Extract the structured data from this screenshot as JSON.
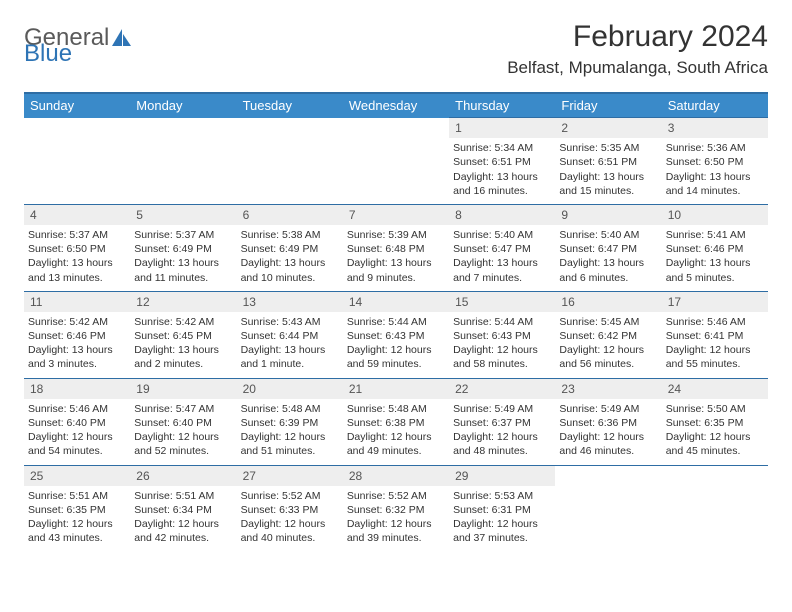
{
  "logo": {
    "general": "General",
    "blue": "Blue"
  },
  "title": "February 2024",
  "location": "Belfast, Mpumalanga, South Africa",
  "colors": {
    "header_bg": "#3a8ac9",
    "header_border": "#2e6da4",
    "daynum_bg": "#eeeeee",
    "text": "#333333",
    "logo_blue": "#2e74b5"
  },
  "weekdays": [
    "Sunday",
    "Monday",
    "Tuesday",
    "Wednesday",
    "Thursday",
    "Friday",
    "Saturday"
  ],
  "weeks": [
    [
      null,
      null,
      null,
      null,
      {
        "n": "1",
        "sr": "Sunrise: 5:34 AM",
        "ss": "Sunset: 6:51 PM",
        "dl1": "Daylight: 13 hours",
        "dl2": "and 16 minutes."
      },
      {
        "n": "2",
        "sr": "Sunrise: 5:35 AM",
        "ss": "Sunset: 6:51 PM",
        "dl1": "Daylight: 13 hours",
        "dl2": "and 15 minutes."
      },
      {
        "n": "3",
        "sr": "Sunrise: 5:36 AM",
        "ss": "Sunset: 6:50 PM",
        "dl1": "Daylight: 13 hours",
        "dl2": "and 14 minutes."
      }
    ],
    [
      {
        "n": "4",
        "sr": "Sunrise: 5:37 AM",
        "ss": "Sunset: 6:50 PM",
        "dl1": "Daylight: 13 hours",
        "dl2": "and 13 minutes."
      },
      {
        "n": "5",
        "sr": "Sunrise: 5:37 AM",
        "ss": "Sunset: 6:49 PM",
        "dl1": "Daylight: 13 hours",
        "dl2": "and 11 minutes."
      },
      {
        "n": "6",
        "sr": "Sunrise: 5:38 AM",
        "ss": "Sunset: 6:49 PM",
        "dl1": "Daylight: 13 hours",
        "dl2": "and 10 minutes."
      },
      {
        "n": "7",
        "sr": "Sunrise: 5:39 AM",
        "ss": "Sunset: 6:48 PM",
        "dl1": "Daylight: 13 hours",
        "dl2": "and 9 minutes."
      },
      {
        "n": "8",
        "sr": "Sunrise: 5:40 AM",
        "ss": "Sunset: 6:47 PM",
        "dl1": "Daylight: 13 hours",
        "dl2": "and 7 minutes."
      },
      {
        "n": "9",
        "sr": "Sunrise: 5:40 AM",
        "ss": "Sunset: 6:47 PM",
        "dl1": "Daylight: 13 hours",
        "dl2": "and 6 minutes."
      },
      {
        "n": "10",
        "sr": "Sunrise: 5:41 AM",
        "ss": "Sunset: 6:46 PM",
        "dl1": "Daylight: 13 hours",
        "dl2": "and 5 minutes."
      }
    ],
    [
      {
        "n": "11",
        "sr": "Sunrise: 5:42 AM",
        "ss": "Sunset: 6:46 PM",
        "dl1": "Daylight: 13 hours",
        "dl2": "and 3 minutes."
      },
      {
        "n": "12",
        "sr": "Sunrise: 5:42 AM",
        "ss": "Sunset: 6:45 PM",
        "dl1": "Daylight: 13 hours",
        "dl2": "and 2 minutes."
      },
      {
        "n": "13",
        "sr": "Sunrise: 5:43 AM",
        "ss": "Sunset: 6:44 PM",
        "dl1": "Daylight: 13 hours",
        "dl2": "and 1 minute."
      },
      {
        "n": "14",
        "sr": "Sunrise: 5:44 AM",
        "ss": "Sunset: 6:43 PM",
        "dl1": "Daylight: 12 hours",
        "dl2": "and 59 minutes."
      },
      {
        "n": "15",
        "sr": "Sunrise: 5:44 AM",
        "ss": "Sunset: 6:43 PM",
        "dl1": "Daylight: 12 hours",
        "dl2": "and 58 minutes."
      },
      {
        "n": "16",
        "sr": "Sunrise: 5:45 AM",
        "ss": "Sunset: 6:42 PM",
        "dl1": "Daylight: 12 hours",
        "dl2": "and 56 minutes."
      },
      {
        "n": "17",
        "sr": "Sunrise: 5:46 AM",
        "ss": "Sunset: 6:41 PM",
        "dl1": "Daylight: 12 hours",
        "dl2": "and 55 minutes."
      }
    ],
    [
      {
        "n": "18",
        "sr": "Sunrise: 5:46 AM",
        "ss": "Sunset: 6:40 PM",
        "dl1": "Daylight: 12 hours",
        "dl2": "and 54 minutes."
      },
      {
        "n": "19",
        "sr": "Sunrise: 5:47 AM",
        "ss": "Sunset: 6:40 PM",
        "dl1": "Daylight: 12 hours",
        "dl2": "and 52 minutes."
      },
      {
        "n": "20",
        "sr": "Sunrise: 5:48 AM",
        "ss": "Sunset: 6:39 PM",
        "dl1": "Daylight: 12 hours",
        "dl2": "and 51 minutes."
      },
      {
        "n": "21",
        "sr": "Sunrise: 5:48 AM",
        "ss": "Sunset: 6:38 PM",
        "dl1": "Daylight: 12 hours",
        "dl2": "and 49 minutes."
      },
      {
        "n": "22",
        "sr": "Sunrise: 5:49 AM",
        "ss": "Sunset: 6:37 PM",
        "dl1": "Daylight: 12 hours",
        "dl2": "and 48 minutes."
      },
      {
        "n": "23",
        "sr": "Sunrise: 5:49 AM",
        "ss": "Sunset: 6:36 PM",
        "dl1": "Daylight: 12 hours",
        "dl2": "and 46 minutes."
      },
      {
        "n": "24",
        "sr": "Sunrise: 5:50 AM",
        "ss": "Sunset: 6:35 PM",
        "dl1": "Daylight: 12 hours",
        "dl2": "and 45 minutes."
      }
    ],
    [
      {
        "n": "25",
        "sr": "Sunrise: 5:51 AM",
        "ss": "Sunset: 6:35 PM",
        "dl1": "Daylight: 12 hours",
        "dl2": "and 43 minutes."
      },
      {
        "n": "26",
        "sr": "Sunrise: 5:51 AM",
        "ss": "Sunset: 6:34 PM",
        "dl1": "Daylight: 12 hours",
        "dl2": "and 42 minutes."
      },
      {
        "n": "27",
        "sr": "Sunrise: 5:52 AM",
        "ss": "Sunset: 6:33 PM",
        "dl1": "Daylight: 12 hours",
        "dl2": "and 40 minutes."
      },
      {
        "n": "28",
        "sr": "Sunrise: 5:52 AM",
        "ss": "Sunset: 6:32 PM",
        "dl1": "Daylight: 12 hours",
        "dl2": "and 39 minutes."
      },
      {
        "n": "29",
        "sr": "Sunrise: 5:53 AM",
        "ss": "Sunset: 6:31 PM",
        "dl1": "Daylight: 12 hours",
        "dl2": "and 37 minutes."
      },
      null,
      null
    ]
  ]
}
